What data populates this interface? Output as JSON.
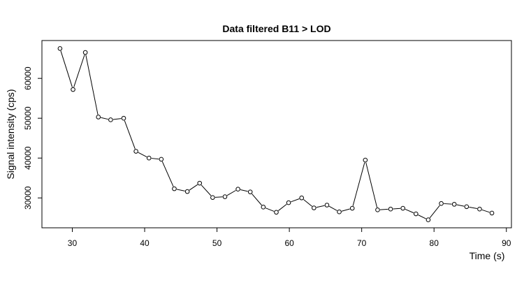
{
  "chart_data": {
    "type": "line",
    "title": "Data filtered B11 > LOD",
    "xlabel": "Time (s)",
    "ylabel": "Signal intensity (cps)",
    "xlim": [
      25.8,
      90.7
    ],
    "ylim": [
      22500,
      69500
    ],
    "x_ticks": [
      30,
      40,
      50,
      60,
      70,
      80,
      90
    ],
    "y_ticks": [
      30000,
      40000,
      50000,
      60000
    ],
    "x_tick_labels": [
      "30",
      "40",
      "50",
      "60",
      "70",
      "80",
      "90"
    ],
    "y_tick_labels": [
      "30000",
      "40000",
      "50000",
      "60000"
    ],
    "grid": false,
    "legend": "none",
    "marker": "open-circle",
    "colors": {
      "line": "#000000",
      "marker_stroke": "#000000",
      "marker_fill": "#ffffff",
      "background": "#ffffff"
    },
    "series": [
      {
        "x": [
          28.3,
          30.1,
          31.8,
          33.6,
          35.3,
          37.1,
          38.8,
          40.6,
          42.3,
          44.1,
          45.9,
          47.6,
          49.4,
          51.1,
          52.9,
          54.6,
          56.4,
          58.2,
          59.9,
          61.7,
          63.4,
          65.2,
          66.9,
          68.7,
          70.5,
          72.2,
          74.0,
          75.7,
          77.5,
          79.2,
          81.0,
          82.8,
          84.5,
          86.3,
          88.0
        ],
        "values": [
          67500,
          57200,
          66500,
          50300,
          49600,
          50000,
          41700,
          40000,
          39700,
          32300,
          31600,
          33700,
          30100,
          30300,
          32200,
          31500,
          27700,
          26400,
          28800,
          30000,
          27500,
          28200,
          26500,
          27400,
          39500,
          27000,
          27200,
          27400,
          26000,
          24500,
          28600,
          28400,
          27800,
          27200,
          26200
        ]
      }
    ]
  }
}
